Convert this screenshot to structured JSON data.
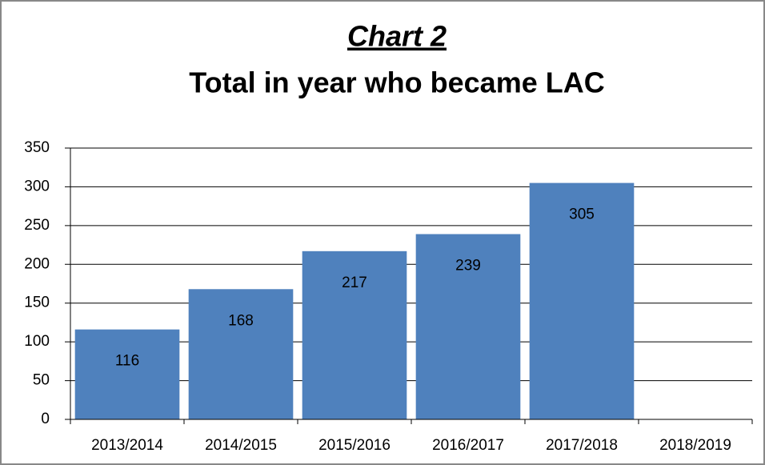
{
  "chart_data": {
    "type": "bar",
    "title": "Chart 2",
    "subtitle": "Total in year who became LAC",
    "categories": [
      "2013/2014",
      "2014/2015",
      "2015/2016",
      "2016/2017",
      "2017/2018",
      "2018/2019"
    ],
    "values": [
      116,
      168,
      217,
      239,
      305,
      null
    ],
    "color": "#4f81bd",
    "ylim": [
      0,
      350
    ],
    "yticks": [
      0,
      50,
      100,
      150,
      200,
      250,
      300,
      350
    ],
    "grid": true
  }
}
